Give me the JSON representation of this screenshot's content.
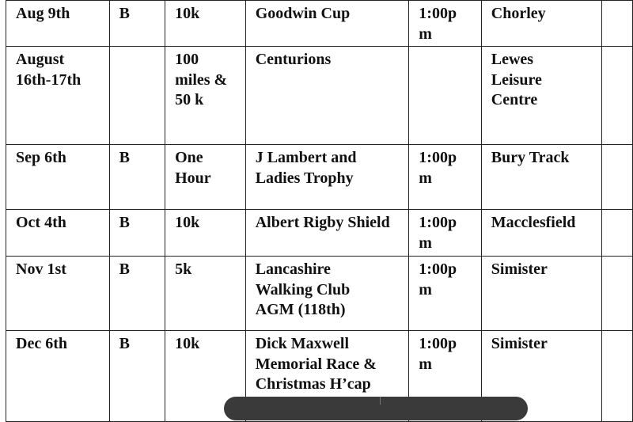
{
  "rows": [
    [
      "Aug 9th",
      "B",
      "10k",
      "Goodwin Cup",
      "1:00p\nm",
      "Chorley",
      ""
    ],
    [
      "August\n16th-17th",
      "",
      "100\nmiles &\n50 k",
      "Centurions",
      "",
      " Lewes\nLeisure\nCentre",
      ""
    ],
    [
      "Sep 6th",
      "B",
      "One\nHour",
      "J Lambert and\nLadies Trophy",
      "1:00p\nm",
      "Bury Track",
      ""
    ],
    [
      "Oct 4th",
      "B",
      "10k",
      "Albert Rigby Shield",
      "1:00p\nm",
      "Macclesfield",
      ""
    ],
    [
      "Nov 1st",
      "B",
      "5k",
      "Lancashire\nWalking Club\nAGM (118th)",
      "1:00p\nm",
      "Simister",
      ""
    ],
    [
      "Dec 6th",
      "B",
      "10k",
      "Dick Maxwell\nMemorial Race &\nChristmas H’cap",
      "1:00p\nm",
      "Simister",
      ""
    ]
  ]
}
